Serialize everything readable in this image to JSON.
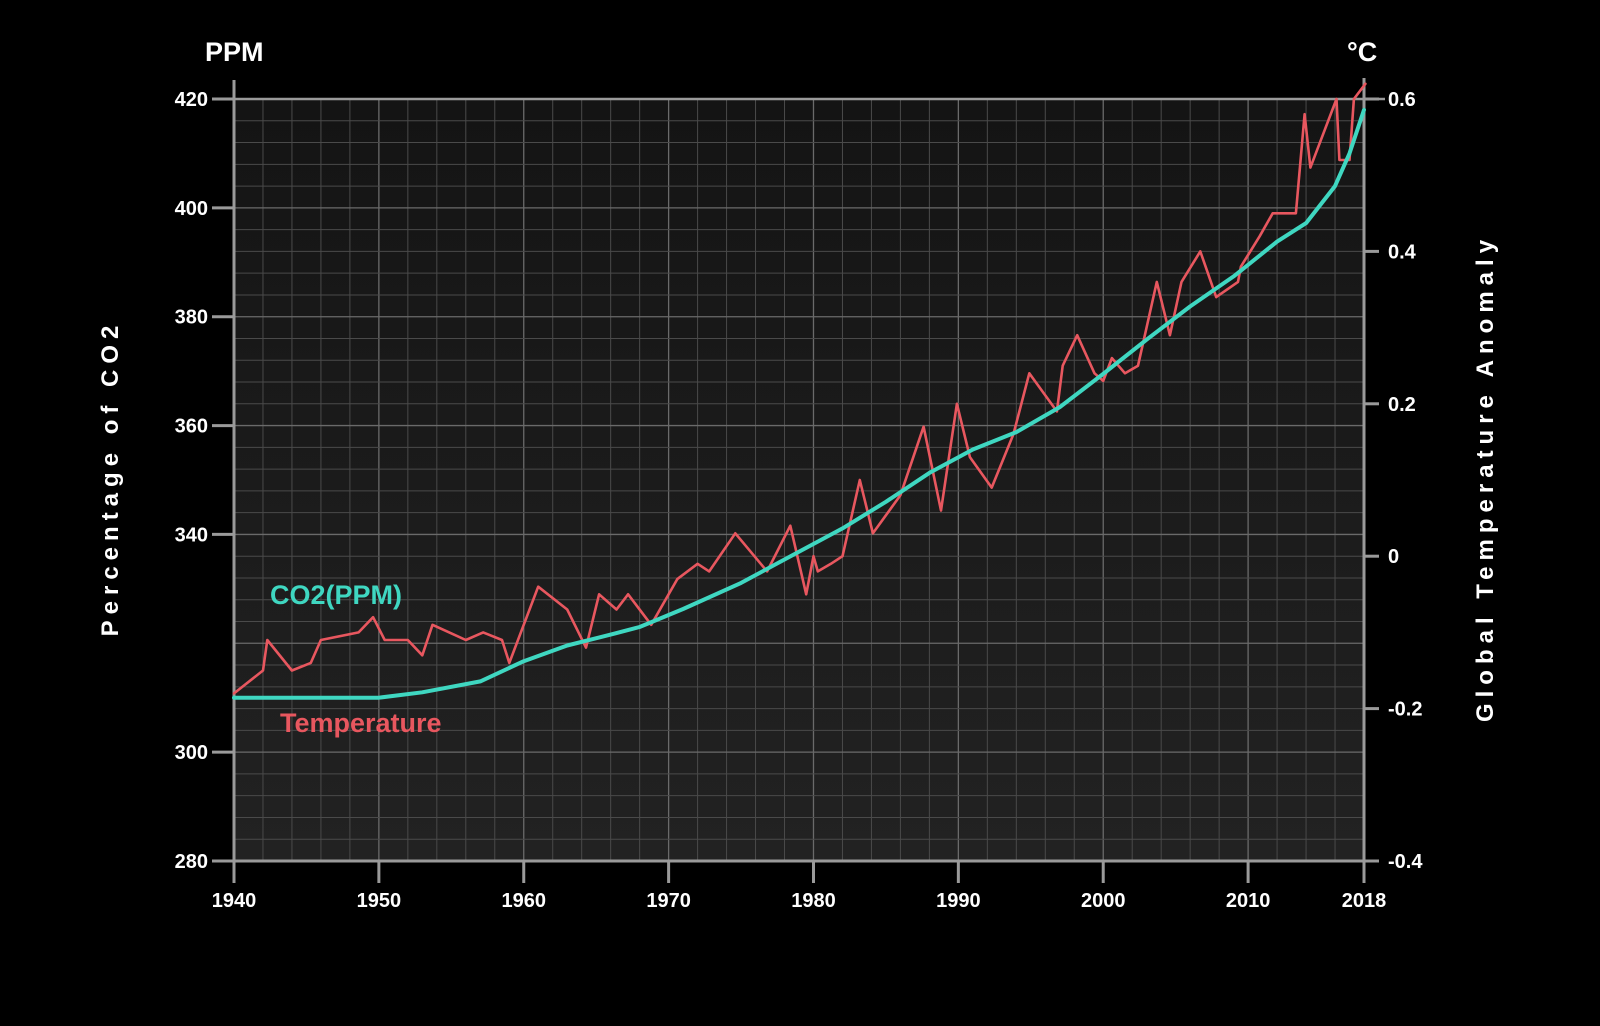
{
  "chart_data": {
    "type": "line",
    "left_unit": "PPM",
    "right_unit": "°C",
    "ylabel_left": "Percentage of CO2",
    "ylabel_right": "Global Temperature Anomaly",
    "xlim": [
      1940,
      2018
    ],
    "ylim_left": [
      280,
      420
    ],
    "ylim_right": [
      -0.4,
      0.6
    ],
    "x_ticks": [
      "1940",
      "1950",
      "1960",
      "1970",
      "1980",
      "1990",
      "2000",
      "2010",
      "2018"
    ],
    "y_left_ticks": [
      "280",
      "300",
      "340",
      "360",
      "380",
      "400",
      "420"
    ],
    "y_right_ticks": [
      "-0.4",
      "-0.2",
      "0",
      "0.2",
      "0.4",
      "0.6"
    ],
    "grid": true,
    "colors": {
      "co2": "#3fd7c1",
      "temperature": "#e8575f",
      "background": "#000000",
      "plot_background": "#1a1a1a",
      "axis": "#9a9a9a"
    },
    "series": [
      {
        "name": "CO2(PPM)",
        "axis": "left",
        "x": [
          1940,
          1945,
          1950,
          1953,
          1957,
          1960,
          1963,
          1966,
          1968,
          1971,
          1975,
          1978,
          1982,
          1985,
          1988,
          1991,
          1994,
          1997,
          2000,
          2003,
          2006,
          2009,
          2012,
          2014,
          2016,
          2017,
          2018
        ],
        "values": [
          310,
          310,
          310,
          311,
          313,
          316.7,
          319.6,
          321.6,
          323,
          326.3,
          331.1,
          335.4,
          341.1,
          346,
          351.3,
          355.6,
          358.8,
          363.4,
          369.5,
          375.8,
          381.9,
          387.4,
          393.8,
          397.2,
          404,
          410,
          418
        ]
      },
      {
        "name": "Temperature",
        "axis": "right",
        "x": [
          1940,
          1942,
          1942.3,
          1944,
          1945.3,
          1946,
          1948.6,
          1949.6,
          1950.4,
          1952,
          1953,
          1953.7,
          1956,
          1957.2,
          1958.5,
          1959,
          1961,
          1963,
          1964.3,
          1965.2,
          1966.4,
          1967.2,
          1968.8,
          1970.6,
          1972,
          1972.8,
          1974.6,
          1976.8,
          1978.4,
          1979.5,
          1980,
          1980.3,
          1981.2,
          1982,
          1983.2,
          1984.1,
          1986,
          1987.6,
          1988.8,
          1989.9,
          1990.8,
          1992.3,
          1993.8,
          1994.9,
          1996.8,
          1997.2,
          1998.2,
          1999.4,
          2000,
          2000.6,
          2001.5,
          2002.4,
          2003.7,
          2004.6,
          2005.4,
          2006.7,
          2007.8,
          2009.3,
          2009.5,
          2010.8,
          2011.7,
          2013.3,
          2013.9,
          2014.3,
          2016.1,
          2016.3,
          2017,
          2017.3,
          2018.1
        ],
        "values": [
          -0.18,
          -0.15,
          -0.11,
          -0.15,
          -0.14,
          -0.11,
          -0.1,
          -0.08,
          -0.11,
          -0.11,
          -0.13,
          -0.09,
          -0.11,
          -0.1,
          -0.11,
          -0.14,
          -0.04,
          -0.07,
          -0.12,
          -0.05,
          -0.07,
          -0.05,
          -0.09,
          -0.03,
          -0.01,
          -0.02,
          0.03,
          -0.02,
          0.04,
          -0.05,
          0.0,
          -0.02,
          -0.01,
          0.0,
          0.1,
          0.03,
          0.08,
          0.17,
          0.06,
          0.2,
          0.13,
          0.09,
          0.16,
          0.24,
          0.19,
          0.25,
          0.29,
          0.24,
          0.23,
          0.26,
          0.24,
          0.25,
          0.36,
          0.29,
          0.36,
          0.4,
          0.34,
          0.36,
          0.38,
          0.42,
          0.45,
          0.45,
          0.58,
          0.51,
          0.6,
          0.52,
          0.52,
          0.6,
          0.62
        ]
      }
    ]
  }
}
